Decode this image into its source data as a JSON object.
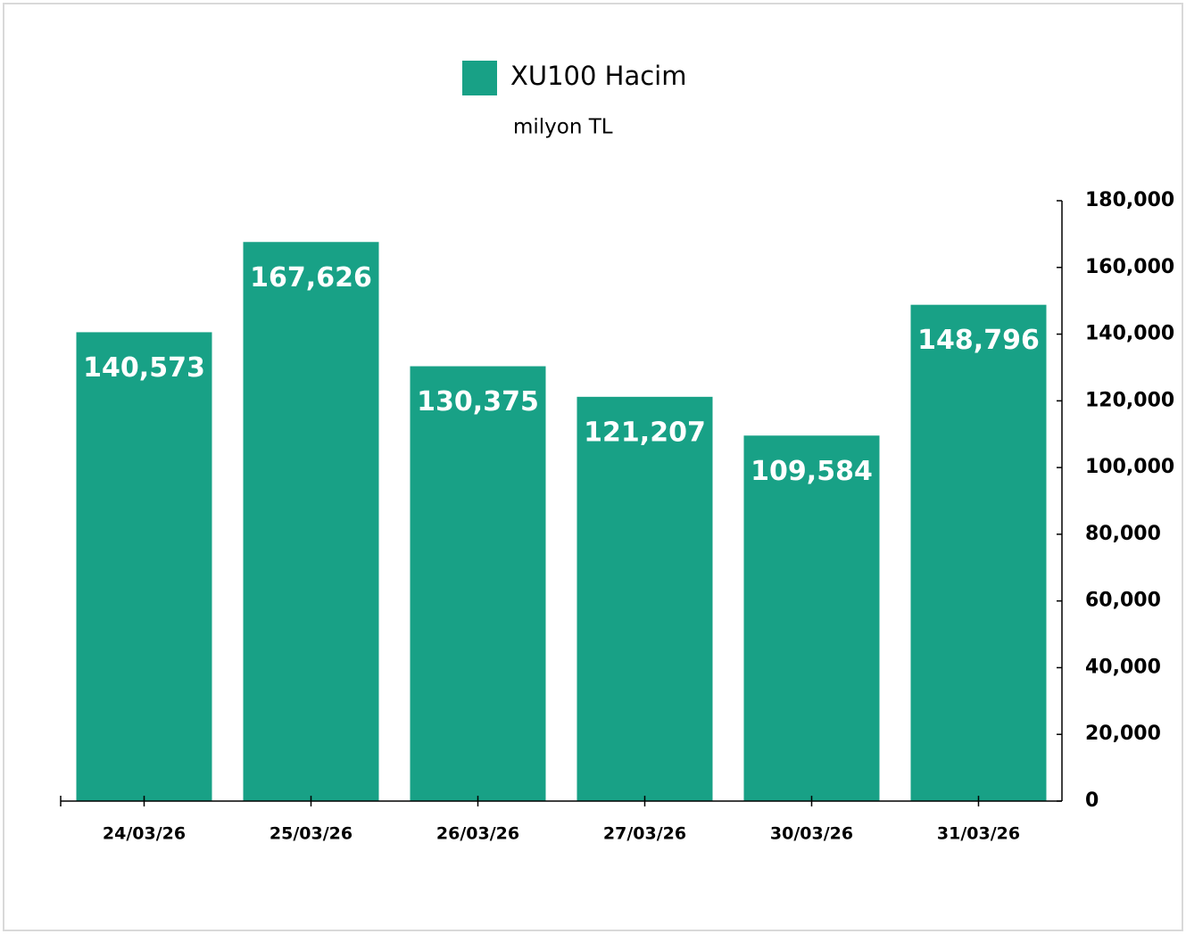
{
  "chart_data": {
    "type": "bar",
    "subtitle": "milyon TL",
    "categories": [
      "24/03/26",
      "25/03/26",
      "26/03/26",
      "27/03/26",
      "30/03/26",
      "31/03/26"
    ],
    "series": [
      {
        "name": "XU100 Hacim",
        "color": "#18a186",
        "values": [
          140573,
          167626,
          130375,
          121207,
          109584,
          148796
        ],
        "value_labels": [
          "140,573",
          "167,626",
          "130,375",
          "121,207",
          "109,584",
          "148,796"
        ]
      }
    ],
    "ylim": [
      0,
      180000
    ],
    "yticks": [
      0,
      {
        "value": 20000,
        "label": "20,000"
      },
      {
        "value": 40000,
        "label": "40,000"
      },
      {
        "value": 60000,
        "label": "60,000"
      },
      {
        "value": 80000,
        "label": "80,000"
      },
      {
        "value": 100000,
        "label": "100,000"
      },
      {
        "value": 120000,
        "label": "120,000"
      },
      {
        "value": 140000,
        "label": "140,000"
      },
      {
        "value": 160000,
        "label": "160,000"
      },
      {
        "value": 180000,
        "label": "180,000"
      }
    ],
    "grid": false
  }
}
